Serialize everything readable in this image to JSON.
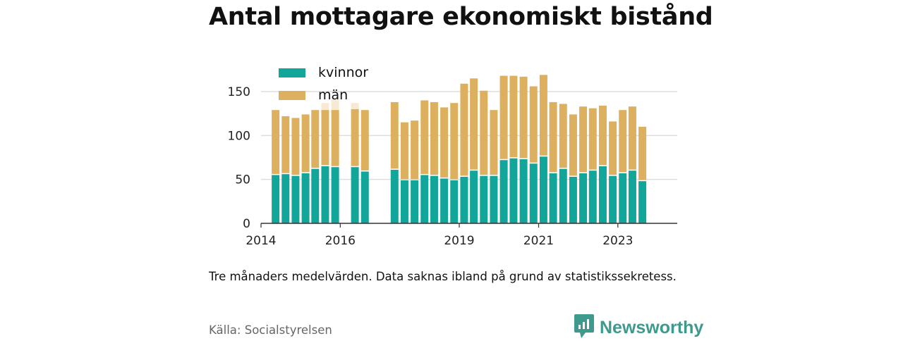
{
  "title": "Antal mottagare ekonomiskt bistånd",
  "note": "Tre månaders medelvärden. Data saknas ibland på grund av statistikssekretess.",
  "source": "Källa: Socialstyrelsen",
  "brand": {
    "name": "Newsworthy",
    "icon": "newsworthy-logo-icon",
    "color": "#3d9a8c"
  },
  "chart_data": {
    "type": "bar",
    "stacked": true,
    "x_type": "date",
    "x_ticks": [
      "2014",
      "2016",
      "2019",
      "2021",
      "2023"
    ],
    "x_range": [
      "2014-01-01",
      "2024-07-01"
    ],
    "y_ticks": [
      0,
      50,
      100,
      150
    ],
    "ylim": [
      0,
      175
    ],
    "grid": true,
    "legend_position": "top-left",
    "series": [
      {
        "name": "kvinnor",
        "color": "#12a59a"
      },
      {
        "name": "män",
        "color": "#dcb05e"
      }
    ],
    "faded_color": "#f7ead2",
    "points": [
      {
        "date": "2014-05-15",
        "kvinnor": 55,
        "man": 74
      },
      {
        "date": "2014-08-15",
        "kvinnor": 56,
        "man": 66
      },
      {
        "date": "2014-11-15",
        "kvinnor": 54,
        "man": 66
      },
      {
        "date": "2015-02-15",
        "kvinnor": 57,
        "man": 67
      },
      {
        "date": "2015-05-15",
        "kvinnor": 62,
        "man": 67
      },
      {
        "date": "2015-08-15",
        "kvinnor": 65,
        "man": 64,
        "faded_man_extra": 8
      },
      {
        "date": "2015-11-15",
        "kvinnor": 64,
        "man": 65,
        "faded_man_extra": 12
      },
      {
        "date": "2016-05-15",
        "kvinnor": 64,
        "man": 66,
        "faded_man_extra": 7
      },
      {
        "date": "2016-08-15",
        "kvinnor": 59,
        "man": 70
      },
      {
        "date": "2017-05-15",
        "kvinnor": 61,
        "man": 77
      },
      {
        "date": "2017-08-15",
        "kvinnor": 49,
        "man": 66
      },
      {
        "date": "2017-11-15",
        "kvinnor": 49,
        "man": 68
      },
      {
        "date": "2018-02-15",
        "kvinnor": 55,
        "man": 85
      },
      {
        "date": "2018-05-15",
        "kvinnor": 54,
        "man": 84
      },
      {
        "date": "2018-08-15",
        "kvinnor": 51,
        "man": 81
      },
      {
        "date": "2018-11-15",
        "kvinnor": 49,
        "man": 88
      },
      {
        "date": "2019-02-15",
        "kvinnor": 53,
        "man": 106
      },
      {
        "date": "2019-05-15",
        "kvinnor": 60,
        "man": 105
      },
      {
        "date": "2019-08-15",
        "kvinnor": 54,
        "man": 97
      },
      {
        "date": "2019-11-15",
        "kvinnor": 54,
        "man": 75
      },
      {
        "date": "2020-02-15",
        "kvinnor": 72,
        "man": 96
      },
      {
        "date": "2020-05-15",
        "kvinnor": 74,
        "man": 94
      },
      {
        "date": "2020-08-15",
        "kvinnor": 73,
        "man": 94
      },
      {
        "date": "2020-11-15",
        "kvinnor": 68,
        "man": 88
      },
      {
        "date": "2021-02-15",
        "kvinnor": 76,
        "man": 93
      },
      {
        "date": "2021-05-15",
        "kvinnor": 57,
        "man": 81
      },
      {
        "date": "2021-08-15",
        "kvinnor": 62,
        "man": 74
      },
      {
        "date": "2021-11-15",
        "kvinnor": 53,
        "man": 71
      },
      {
        "date": "2022-02-15",
        "kvinnor": 57,
        "man": 76
      },
      {
        "date": "2022-05-15",
        "kvinnor": 60,
        "man": 71
      },
      {
        "date": "2022-08-15",
        "kvinnor": 65,
        "man": 69
      },
      {
        "date": "2022-11-15",
        "kvinnor": 54,
        "man": 62
      },
      {
        "date": "2023-02-15",
        "kvinnor": 57,
        "man": 72
      },
      {
        "date": "2023-05-15",
        "kvinnor": 60,
        "man": 73
      },
      {
        "date": "2023-08-15",
        "kvinnor": 48,
        "man": 62
      }
    ]
  }
}
